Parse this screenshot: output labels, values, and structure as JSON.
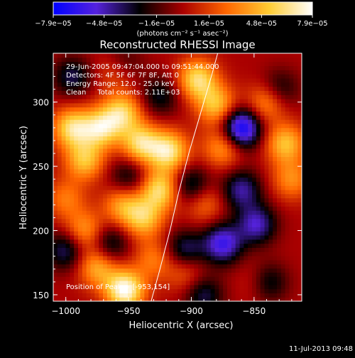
{
  "colors": {
    "background": "#000000",
    "text": "#ffffff",
    "colorbar_stops": [
      "#0000ff",
      "#5522dd",
      "#000000",
      "#aa0000",
      "#ff6600",
      "#ffcc33",
      "#ffffff"
    ]
  },
  "chart_data": {
    "type": "heatmap",
    "title": "Reconstructed RHESSI Image",
    "xlabel": "Heliocentric X (arcsec)",
    "ylabel": "Heliocentric Y (arcsec)",
    "xlim": [
      -1010,
      -812
    ],
    "ylim": [
      145,
      338
    ],
    "x_ticks": [
      -1000,
      -950,
      -900,
      -850
    ],
    "x_tick_labels": [
      "−1000",
      "−950",
      "−900",
      "−850"
    ],
    "y_ticks": [
      150,
      200,
      250,
      300
    ],
    "y_tick_labels": [
      "150",
      "200",
      "250",
      "300"
    ],
    "colorbar": {
      "min": -7.9e-05,
      "max": 7.9e-05,
      "ticks": [
        -7.9e-05,
        -4.8e-05,
        -1.6e-05,
        1.6e-05,
        4.8e-05,
        7.9e-05
      ],
      "tick_labels": [
        "−7.9e−05",
        "−4.8e−05",
        "−1.6e−05",
        "1.6e−05",
        "4.8e−05",
        "7.9e−05"
      ],
      "units_label": "(photons cm⁻² s⁻¹ asec⁻²)"
    },
    "info_lines": [
      "29-Jun-2005 09:47:04.000 to 09:51:44.000",
      "Detectors: 4F 5F 6F 7F 8F, Att 0",
      "Energy Range: 12.0 - 25.0 keV",
      "Clean     Total counts: 2.11E+03"
    ],
    "peak_label": "Position of Peak = [-953,154]",
    "peak": {
      "x": -953,
      "y": 154
    },
    "limb_curve": [
      [
        -932,
        145
      ],
      [
        -925,
        170
      ],
      [
        -917,
        200
      ],
      [
        -910,
        230
      ],
      [
        -902,
        260
      ],
      [
        -893,
        290
      ],
      [
        -884,
        320
      ],
      [
        -879,
        338
      ]
    ],
    "blobs": [
      {
        "x": -995,
        "y": 280,
        "v": 6e-05
      },
      {
        "x": -985,
        "y": 255,
        "v": 5e-05
      },
      {
        "x": -972,
        "y": 280,
        "v": 6e-05
      },
      {
        "x": -955,
        "y": 292,
        "v": 5.5e-05
      },
      {
        "x": -940,
        "y": 268,
        "v": 6e-05
      },
      {
        "x": -918,
        "y": 262,
        "v": 6.5e-05
      },
      {
        "x": -925,
        "y": 232,
        "v": 6e-05
      },
      {
        "x": -938,
        "y": 210,
        "v": 5e-05
      },
      {
        "x": -955,
        "y": 220,
        "v": 4e-05
      },
      {
        "x": -985,
        "y": 200,
        "v": 4e-05
      },
      {
        "x": -1000,
        "y": 225,
        "v": 3e-05
      },
      {
        "x": -975,
        "y": 172,
        "v": 4.5e-05
      },
      {
        "x": -953,
        "y": 154,
        "v": 7.9e-05
      },
      {
        "x": -930,
        "y": 178,
        "v": 3e-05
      },
      {
        "x": -895,
        "y": 318,
        "v": 6e-05
      },
      {
        "x": -880,
        "y": 298,
        "v": 5e-05
      },
      {
        "x": -875,
        "y": 265,
        "v": 4e-05
      },
      {
        "x": -840,
        "y": 300,
        "v": 4e-05
      },
      {
        "x": -825,
        "y": 268,
        "v": 5e-05
      },
      {
        "x": -820,
        "y": 240,
        "v": 3.5e-05
      },
      {
        "x": -890,
        "y": 222,
        "v": 3e-05
      },
      {
        "x": -845,
        "y": 160,
        "v": 3e-05
      },
      {
        "x": -905,
        "y": 168,
        "v": 2.5e-05
      },
      {
        "x": -960,
        "y": 325,
        "v": 3e-05
      },
      {
        "x": -860,
        "y": 280,
        "v": -7.9e-05
      },
      {
        "x": -875,
        "y": 190,
        "v": -6e-05
      },
      {
        "x": -900,
        "y": 235,
        "v": -4e-05
      },
      {
        "x": -848,
        "y": 205,
        "v": -5e-05
      },
      {
        "x": -840,
        "y": 160,
        "v": -5e-05
      },
      {
        "x": -860,
        "y": 232,
        "v": -4.5e-05
      },
      {
        "x": -905,
        "y": 185,
        "v": -4e-05
      },
      {
        "x": -965,
        "y": 190,
        "v": -3.5e-05
      },
      {
        "x": -1000,
        "y": 185,
        "v": -4e-05
      },
      {
        "x": -995,
        "y": 320,
        "v": -3.5e-05
      },
      {
        "x": -950,
        "y": 242,
        "v": -3e-05
      },
      {
        "x": -925,
        "y": 305,
        "v": -3e-05
      },
      {
        "x": -890,
        "y": 150,
        "v": -3.5e-05
      },
      {
        "x": -830,
        "y": 310,
        "v": -3e-05
      },
      {
        "x": -955,
        "y": 330,
        "v": -3e-05
      }
    ]
  },
  "footer": {
    "date_stamp": "11-Jul-2013 09:48"
  }
}
